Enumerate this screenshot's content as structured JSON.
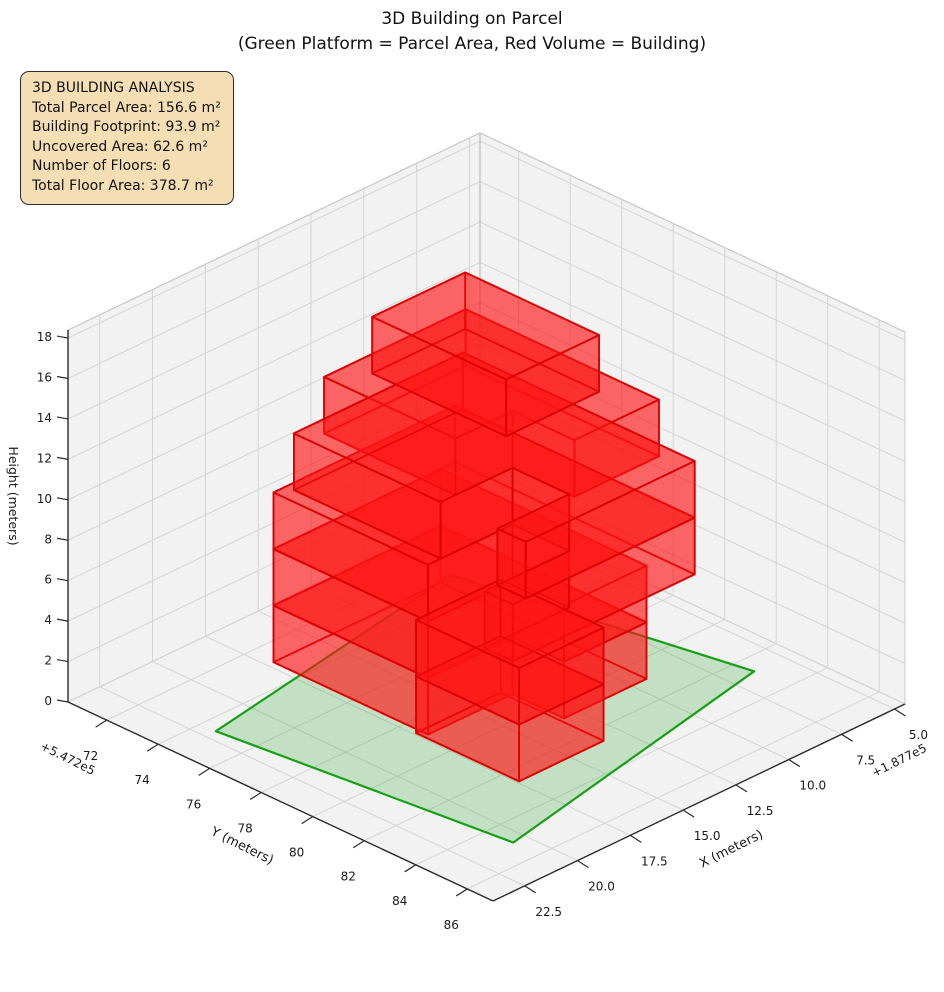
{
  "title": {
    "line1": "3D Building on Parcel",
    "line2": "(Green Platform = Parcel Area, Red Volume = Building)"
  },
  "info_box": {
    "lines": [
      "3D BUILDING ANALYSIS",
      "Total Parcel Area: 156.6 m²",
      "Building Footprint: 93.9 m²",
      "Uncovered Area: 62.6 m²",
      "Number of Floors: 6",
      "Total Floor Area: 378.7 m²"
    ]
  },
  "axes": {
    "x": {
      "label": "X (meters)",
      "offset_text": "+1.877e5",
      "lim": [
        4.5,
        24.0
      ],
      "tick_labels": [
        "5.0",
        "7.5",
        "10.0",
        "12.5",
        "15.0",
        "17.5",
        "20.0",
        "22.5"
      ],
      "tick_values": [
        5.0,
        7.5,
        10.0,
        12.5,
        15.0,
        17.5,
        20.0,
        22.5
      ]
    },
    "y": {
      "label": "Y (meters)",
      "offset_text": "+5.472e5",
      "lim": [
        70.5,
        87.0
      ],
      "tick_labels": [
        "72",
        "74",
        "76",
        "78",
        "80",
        "82",
        "84",
        "86"
      ],
      "tick_values": [
        72,
        74,
        76,
        78,
        80,
        82,
        84,
        86
      ]
    },
    "z": {
      "label": "Height (meters)",
      "lim": [
        0,
        18.4
      ],
      "tick_labels": [
        "0",
        "2",
        "4",
        "6",
        "8",
        "10",
        "12",
        "14",
        "16",
        "18"
      ],
      "tick_values": [
        0,
        2,
        4,
        6,
        8,
        10,
        12,
        14,
        16,
        18
      ]
    }
  },
  "chart_data": {
    "type": "3d-building",
    "num_floors": 6,
    "floor_height_m": 2.8,
    "total_parcel_area_m2": 156.6,
    "building_footprint_m2": 93.9,
    "uncovered_area_m2": 62.6,
    "total_floor_area_m2": 378.7,
    "parcel_polygon_xy": [
      [
        22.0,
        74.6
      ],
      [
        20.6,
        85.0
      ],
      [
        6.4,
        82.7
      ],
      [
        8.7,
        72.8
      ]
    ],
    "building_prisms": [
      {
        "name": "floor-1-main",
        "z": [
          0,
          2.8
        ],
        "footprint": [
          [
            9.3,
            72.9
          ],
          [
            17.2,
            72.9
          ],
          [
            17.2,
            78.9
          ],
          [
            13.2,
            78.9
          ],
          [
            13.2,
            80.9
          ],
          [
            9.3,
            80.9
          ]
        ]
      },
      {
        "name": "floor-2-main",
        "z": [
          2.8,
          5.6
        ],
        "footprint": [
          [
            9.3,
            72.9
          ],
          [
            17.2,
            72.9
          ],
          [
            17.2,
            78.9
          ],
          [
            13.2,
            78.9
          ],
          [
            13.2,
            80.9
          ],
          [
            9.3,
            80.9
          ]
        ]
      },
      {
        "name": "floor-3",
        "z": [
          5.6,
          8.4
        ],
        "footprint": [
          [
            8.6,
            72.9
          ],
          [
            17.2,
            72.9
          ],
          [
            17.2,
            78.9
          ],
          [
            13.2,
            78.9
          ],
          [
            13.2,
            81.1
          ],
          [
            17.2,
            81.1
          ],
          [
            17.2,
            82.2
          ],
          [
            8.6,
            82.2
          ]
        ]
      },
      {
        "name": "floor-4",
        "z": [
          8.4,
          11.2
        ],
        "footprint": [
          [
            8.6,
            73.2
          ],
          [
            16.6,
            73.2
          ],
          [
            16.6,
            78.9
          ],
          [
            13.2,
            78.9
          ],
          [
            13.2,
            81.1
          ],
          [
            16.6,
            81.1
          ],
          [
            16.6,
            82.2
          ],
          [
            8.6,
            82.2
          ]
        ]
      },
      {
        "name": "podium-floor-1",
        "z": [
          0,
          2.8
        ],
        "footprint": [
          [
            13.4,
            78.6
          ],
          [
            17.4,
            78.6
          ],
          [
            17.4,
            82.6
          ],
          [
            13.4,
            82.6
          ]
        ]
      },
      {
        "name": "floor-5",
        "z": [
          11.2,
          14.0
        ],
        "footprint": [
          [
            9.2,
            73.8
          ],
          [
            15.9,
            73.8
          ],
          [
            15.9,
            78.9
          ],
          [
            13.2,
            78.9
          ],
          [
            13.2,
            81.3
          ],
          [
            9.2,
            81.3
          ]
        ]
      },
      {
        "name": "podium-floor-2",
        "z": [
          2.8,
          5.6
        ],
        "footprint": [
          [
            13.4,
            78.6
          ],
          [
            17.4,
            78.6
          ],
          [
            17.4,
            82.6
          ],
          [
            13.4,
            82.6
          ]
        ]
      },
      {
        "name": "floor-6",
        "z": [
          14.0,
          16.8
        ],
        "footprint": [
          [
            10.2,
            74.6
          ],
          [
            14.6,
            74.6
          ],
          [
            14.6,
            79.8
          ],
          [
            10.2,
            79.8
          ]
        ]
      }
    ],
    "colors": {
      "building_fill": "rgba(255,20,20,0.40)",
      "building_edge": "#dd0000",
      "parcel_fill": "rgba(30,160,30,0.22)",
      "parcel_edge": "#17a017",
      "pane": "#f2f2f3",
      "pane_edge": "#cacaca",
      "grid": "#d4d4d4",
      "axis_line": "#2b2b2b",
      "tick_text": "#1a1a1a",
      "info_bg": "#f5deb3",
      "info_border": "#2e2e2e"
    }
  }
}
